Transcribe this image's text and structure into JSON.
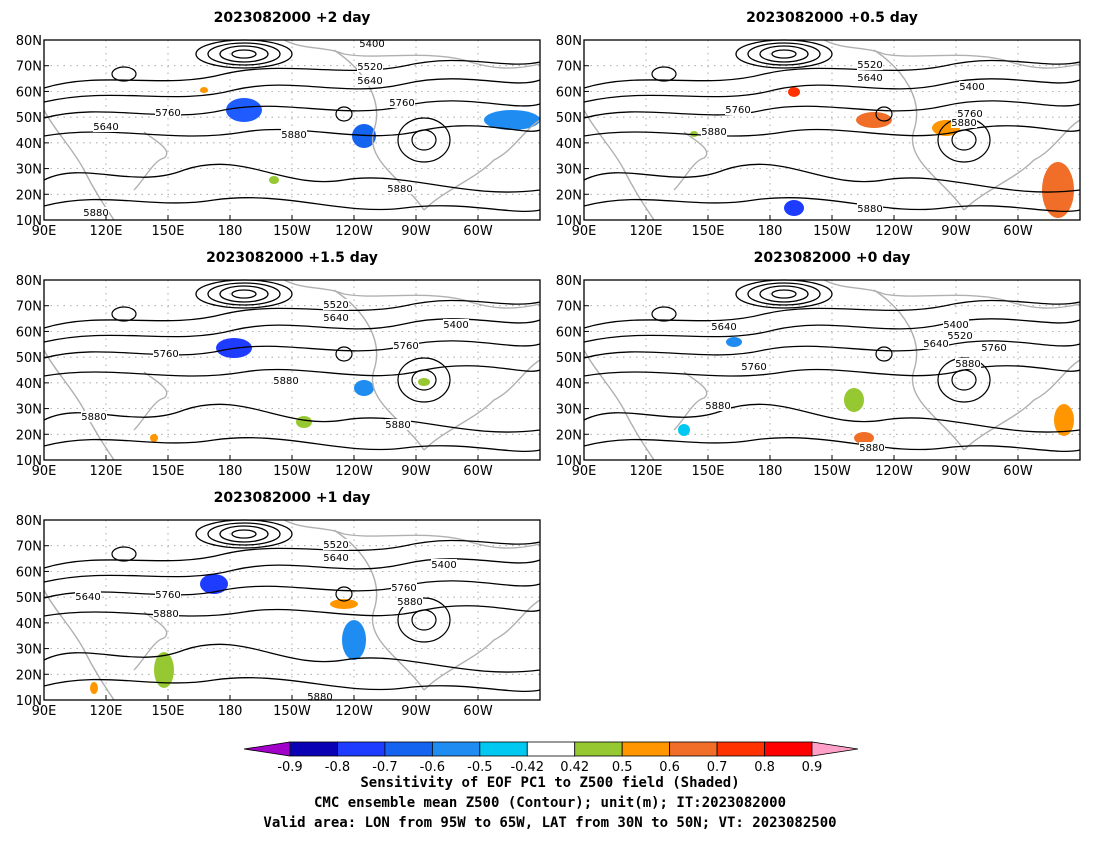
{
  "panels": [
    {
      "title": "2023082000  +2 day",
      "contour_labels": [
        "5400",
        "5520",
        "5640",
        "5760",
        "5640",
        "5760",
        "5880",
        "5880",
        "5880"
      ]
    },
    {
      "title": "2023082000  +0.5 day",
      "contour_labels": [
        "5520",
        "5640",
        "5400",
        "5760",
        "5760",
        "5880",
        "5880",
        "5880"
      ]
    },
    {
      "title": "2023082000  +1.5 day",
      "contour_labels": [
        "5520",
        "5640",
        "5400",
        "5760",
        "5760",
        "5880",
        "5880",
        "5880"
      ]
    },
    {
      "title": "2023082000  +0 day",
      "contour_labels": [
        "5640",
        "5400",
        "5520",
        "5640",
        "5760",
        "5760",
        "5880",
        "5880",
        "5880"
      ]
    },
    {
      "title": "2023082000  +1 day",
      "contour_labels": [
        "5520",
        "5640",
        "5400",
        "5640",
        "5760",
        "5760",
        "5880",
        "5880",
        "5880"
      ]
    }
  ],
  "axes": {
    "lat_labels": [
      "80N",
      "70N",
      "60N",
      "50N",
      "40N",
      "30N",
      "20N",
      "10N"
    ],
    "lon_labels": [
      "90E",
      "120E",
      "150E",
      "180",
      "150W",
      "120W",
      "90W",
      "60W"
    ]
  },
  "colorbar": {
    "ticks": [
      "-0.9",
      "-0.8",
      "-0.7",
      "-0.6",
      "-0.5",
      "-0.42",
      "0.42",
      "0.5",
      "0.6",
      "0.7",
      "0.8",
      "0.9"
    ],
    "colors": [
      "#a000c8",
      "#0a00b4",
      "#1e3cff",
      "#1464f0",
      "#1e8cf0",
      "#00c8f0",
      "#ffffff",
      "#96c832",
      "#ff9600",
      "#f06e28",
      "#ff3200",
      "#ff0000",
      "#ffa0c8"
    ]
  },
  "caption": {
    "line1": "Sensitivity of EOF PC1 to Z500 field (Shaded)",
    "line2": "CMC ensemble mean Z500 (Contour); unit(m); IT:2023082000",
    "line3": "Valid area: LON from 95W to 65W, LAT from 30N to 50N; VT: 2023082500"
  }
}
